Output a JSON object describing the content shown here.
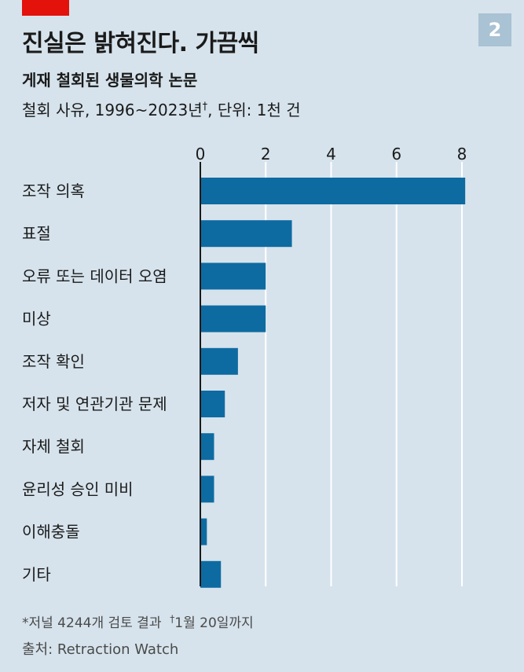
{
  "badge": "2",
  "title": "진실은 밝혀진다. 가끔씩",
  "subtitle": "게재 철회된 생물의학 논문",
  "description": {
    "text": "철회 사유, 1996~2023년",
    "marker": "†",
    "suffix": ", 단위: 1천 건"
  },
  "footnote": {
    "note1": "*저널 4244개 검토 결과",
    "marker": "†",
    "note2": "1월 20일까지"
  },
  "source": "출처: Retraction Watch",
  "colors": {
    "bar": "#0e6ba1",
    "gridline": "#ffffff",
    "axis": "#1a1a1a",
    "background": "#d6e3ec",
    "accent": "#e3120b"
  },
  "chart_data": {
    "type": "bar",
    "orientation": "horizontal",
    "categories": [
      "조작 의혹",
      "표절",
      "오류 또는 데이터 오염",
      "미상",
      "조작 확인",
      "저자 및 연관기관 문제",
      "자체 철회",
      "윤리성 승인 미비",
      "이해충돌",
      "기타"
    ],
    "values": [
      8.1,
      2.8,
      2.0,
      2.0,
      1.15,
      0.75,
      0.42,
      0.42,
      0.2,
      0.63
    ],
    "xlim": [
      0,
      8
    ],
    "ticks": [
      "0",
      "2",
      "4",
      "6",
      "8"
    ],
    "grid": true
  }
}
